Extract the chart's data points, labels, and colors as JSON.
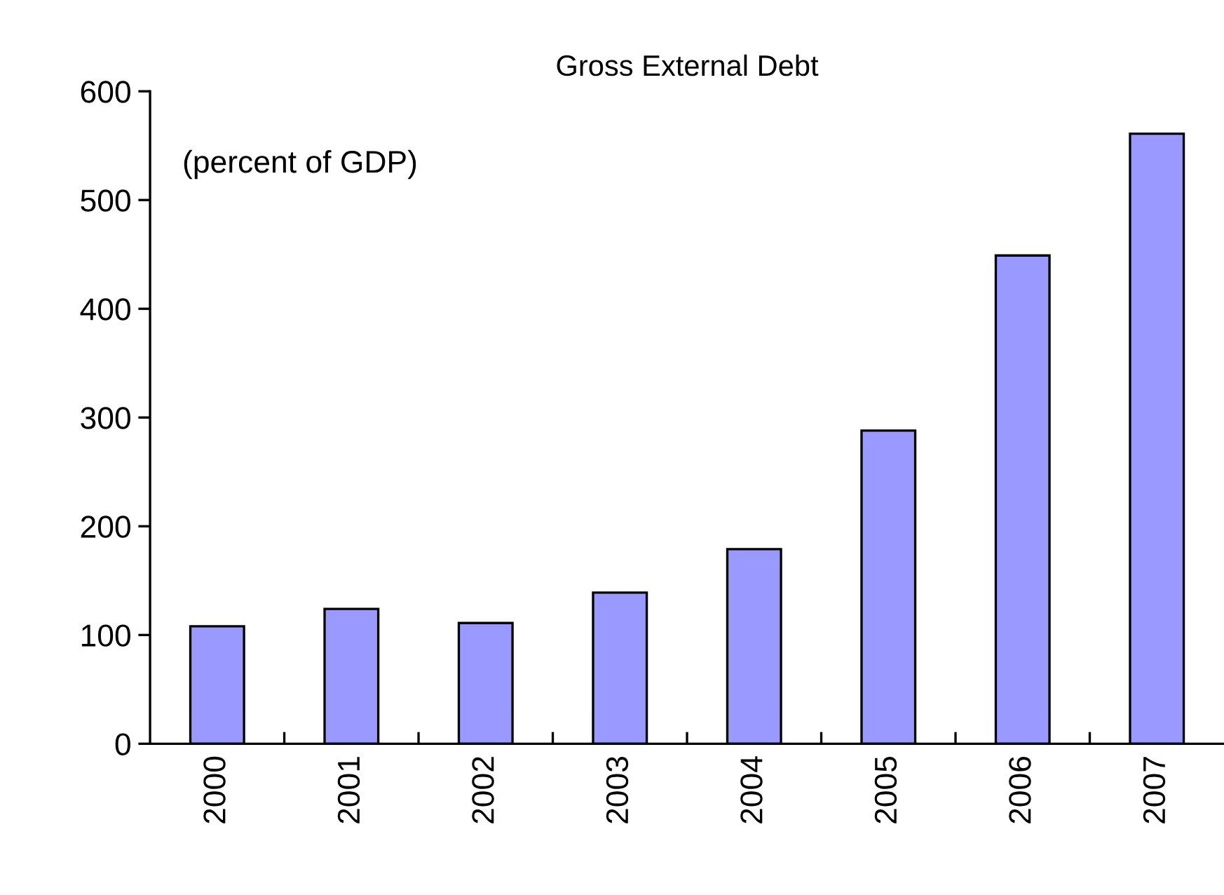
{
  "chart_data": {
    "type": "bar",
    "title": "Gross External Debt",
    "annotations": [
      "(percent of GDP)"
    ],
    "categories": [
      "2000",
      "2001",
      "2002",
      "2003",
      "2004",
      "2005",
      "2006",
      "2007"
    ],
    "values": [
      108,
      124,
      111,
      139,
      179,
      288,
      449,
      561
    ],
    "color": "#9999ff",
    "ylim": [
      0,
      600
    ],
    "yticks": [
      0,
      100,
      200,
      300,
      400,
      500,
      600
    ],
    "grid": false,
    "legend": false
  }
}
